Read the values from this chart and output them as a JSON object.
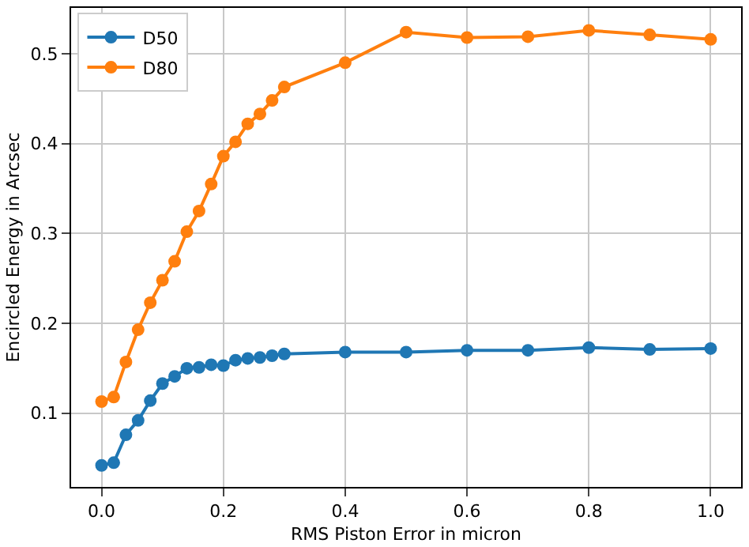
{
  "chart_data": {
    "type": "line",
    "xlabel": "RMS Piston Error in micron",
    "ylabel": "Encircled Energy in Arcsec",
    "x": [
      0,
      0.02,
      0.04,
      0.06,
      0.08,
      0.1,
      0.12,
      0.14,
      0.16,
      0.18,
      0.2,
      0.22,
      0.24,
      0.26,
      0.28,
      0.3,
      0.4,
      0.5,
      0.6,
      0.7,
      0.8,
      0.9,
      1.0
    ],
    "series": [
      {
        "name": "D50",
        "color": "#1f77b4",
        "values": [
          0.042,
          0.045,
          0.076,
          0.092,
          0.114,
          0.133,
          0.141,
          0.15,
          0.151,
          0.154,
          0.153,
          0.159,
          0.161,
          0.162,
          0.164,
          0.166,
          0.168,
          0.168,
          0.17,
          0.17,
          0.173,
          0.171,
          0.172
        ]
      },
      {
        "name": "D80",
        "color": "#ff7f0e",
        "values": [
          0.113,
          0.118,
          0.157,
          0.193,
          0.223,
          0.248,
          0.269,
          0.302,
          0.325,
          0.355,
          0.386,
          0.402,
          0.422,
          0.433,
          0.448,
          0.463,
          0.49,
          0.524,
          0.518,
          0.519,
          0.526,
          0.521,
          0.516
        ]
      }
    ],
    "xlim": [
      -0.05,
      1.05
    ],
    "ylim": [
      0.018,
      0.551
    ],
    "xticks": [
      {
        "value": 0,
        "label": "0.0"
      },
      0.2,
      0.4,
      0.6,
      0.8,
      {
        "value": 1,
        "label": "1.0"
      }
    ],
    "yticks": [
      0.1,
      0.2,
      0.3,
      0.4,
      0.5
    ],
    "grid": true,
    "legend": "top left",
    "marker": "circle",
    "line_style": "solid"
  }
}
